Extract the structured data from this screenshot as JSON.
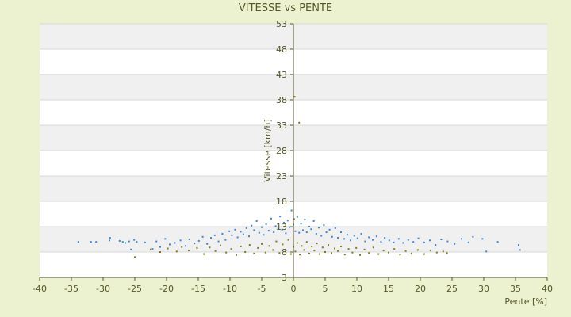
{
  "chart_data": {
    "type": "scatter",
    "title": "VITESSE vs PENTE",
    "xlabel": "Pente [%]",
    "ylabel": "Vitesse [km/h]",
    "xlim": [
      -40,
      40
    ],
    "ylim": [
      3,
      53
    ],
    "xticks": [
      -40,
      -35,
      -30,
      -25,
      -20,
      -15,
      -10,
      -5,
      0,
      5,
      10,
      15,
      20,
      25,
      30,
      35,
      40
    ],
    "yticks": [
      3,
      8,
      13,
      18,
      23,
      28,
      33,
      38,
      43,
      48,
      53
    ],
    "grid": "horizontal bands",
    "legend": "none",
    "colors": {
      "background": "#ecf2cf",
      "plot_band_light": "#ffffff",
      "plot_band_dark": "#f0f0f0",
      "gridline": "#d8d8d8",
      "axis": "#555528",
      "text": "#555528",
      "series_blue": "#3a86d4",
      "series_olive": "#7f7f10"
    },
    "series": [
      {
        "color": "#3a86d4",
        "points": [
          [
            -33.9,
            10.0
          ],
          [
            -31.9,
            10.0
          ],
          [
            -31.1,
            10.0
          ],
          [
            -29.0,
            10.3
          ],
          [
            -28.9,
            10.8
          ],
          [
            -27.4,
            10.2
          ],
          [
            -26.9,
            10.0
          ],
          [
            -26.5,
            9.8
          ],
          [
            -25.9,
            10.1
          ],
          [
            -25.6,
            8.5
          ],
          [
            -25.1,
            10.4
          ],
          [
            -24.7,
            10.0
          ],
          [
            -23.4,
            9.9
          ],
          [
            -22.2,
            8.6
          ],
          [
            -21.6,
            10.1
          ],
          [
            -21.0,
            9.0
          ],
          [
            -20.2,
            10.6
          ],
          [
            -19.5,
            9.5
          ],
          [
            -18.7,
            9.8
          ],
          [
            -17.8,
            10.3
          ],
          [
            -17.0,
            9.2
          ],
          [
            -16.4,
            10.5
          ],
          [
            -15.6,
            9.7
          ],
          [
            -14.9,
            10.2
          ],
          [
            -14.3,
            11.0
          ],
          [
            -13.6,
            9.6
          ],
          [
            -13.0,
            10.8
          ],
          [
            -12.4,
            11.3
          ],
          [
            -11.8,
            10.1
          ],
          [
            -11.2,
            11.6
          ],
          [
            -10.7,
            10.4
          ],
          [
            -10.1,
            12.1
          ],
          [
            -9.7,
            11.3
          ],
          [
            -9.2,
            12.4
          ],
          [
            -8.8,
            10.9
          ],
          [
            -8.3,
            12.0
          ],
          [
            -7.9,
            11.5
          ],
          [
            -7.4,
            12.7
          ],
          [
            -7.0,
            11.1
          ],
          [
            -6.6,
            13.2
          ],
          [
            -6.2,
            12.3
          ],
          [
            -5.8,
            14.1
          ],
          [
            -5.4,
            11.8
          ],
          [
            -5.0,
            12.9
          ],
          [
            -4.7,
            11.4
          ],
          [
            -4.3,
            13.5
          ],
          [
            -3.9,
            12.2
          ],
          [
            -3.5,
            14.6
          ],
          [
            -3.1,
            11.9
          ],
          [
            -2.8,
            13.1
          ],
          [
            -2.4,
            12.6
          ],
          [
            -2.1,
            15.0
          ],
          [
            -1.8,
            12.4
          ],
          [
            -1.5,
            13.8
          ],
          [
            -1.2,
            11.7
          ],
          [
            -0.9,
            14.2
          ],
          [
            -0.6,
            12.9
          ],
          [
            -0.3,
            16.2
          ],
          [
            0.0,
            13.4
          ],
          [
            0.3,
            12.1
          ],
          [
            0.6,
            14.9
          ],
          [
            0.9,
            11.8
          ],
          [
            1.2,
            13.6
          ],
          [
            1.5,
            12.3
          ],
          [
            1.8,
            14.4
          ],
          [
            2.1,
            11.9
          ],
          [
            2.5,
            13.0
          ],
          [
            2.8,
            12.5
          ],
          [
            3.2,
            14.1
          ],
          [
            3.6,
            11.6
          ],
          [
            4.0,
            12.8
          ],
          [
            4.4,
            11.2
          ],
          [
            4.8,
            13.3
          ],
          [
            5.2,
            11.9
          ],
          [
            5.7,
            12.4
          ],
          [
            6.1,
            11.0
          ],
          [
            6.6,
            12.7
          ],
          [
            7.0,
            10.8
          ],
          [
            7.5,
            11.9
          ],
          [
            8.0,
            10.6
          ],
          [
            8.5,
            11.4
          ],
          [
            9.0,
            10.3
          ],
          [
            9.6,
            11.2
          ],
          [
            10.1,
            10.7
          ],
          [
            10.7,
            11.6
          ],
          [
            11.3,
            10.1
          ],
          [
            11.9,
            10.9
          ],
          [
            12.5,
            10.4
          ],
          [
            13.1,
            11.1
          ],
          [
            13.8,
            10.0
          ],
          [
            14.4,
            10.8
          ],
          [
            15.1,
            10.3
          ],
          [
            15.8,
            9.9
          ],
          [
            16.6,
            10.6
          ],
          [
            17.3,
            9.8
          ],
          [
            18.1,
            10.4
          ],
          [
            18.9,
            10.0
          ],
          [
            19.7,
            10.7
          ],
          [
            20.6,
            9.9
          ],
          [
            21.5,
            10.3
          ],
          [
            22.4,
            9.4
          ],
          [
            23.3,
            10.5
          ],
          [
            24.3,
            10.1
          ],
          [
            25.4,
            9.6
          ],
          [
            26.5,
            10.6
          ],
          [
            27.6,
            9.9
          ],
          [
            28.3,
            11.0
          ],
          [
            29.8,
            10.6
          ],
          [
            30.4,
            8.1
          ],
          [
            32.2,
            10.0
          ],
          [
            35.5,
            9.4
          ],
          [
            35.7,
            8.4
          ]
        ]
      },
      {
        "color": "#7f7f10",
        "points": [
          [
            -25.0,
            7.0
          ],
          [
            -22.5,
            8.5
          ],
          [
            -21.0,
            8.0
          ],
          [
            -19.8,
            8.7
          ],
          [
            -18.4,
            8.1
          ],
          [
            -17.6,
            9.0
          ],
          [
            -16.5,
            8.3
          ],
          [
            -15.2,
            8.8
          ],
          [
            -14.1,
            7.6
          ],
          [
            -13.2,
            8.9
          ],
          [
            -12.3,
            8.2
          ],
          [
            -11.5,
            9.3
          ],
          [
            -10.6,
            7.9
          ],
          [
            -9.8,
            8.6
          ],
          [
            -9.0,
            7.4
          ],
          [
            -8.3,
            9.1
          ],
          [
            -7.6,
            8.0
          ],
          [
            -6.9,
            9.4
          ],
          [
            -6.2,
            7.7
          ],
          [
            -5.6,
            8.8
          ],
          [
            -5.0,
            9.6
          ],
          [
            -4.4,
            7.9
          ],
          [
            -3.8,
            9.2
          ],
          [
            -3.2,
            8.4
          ],
          [
            -2.7,
            10.1
          ],
          [
            -2.2,
            7.8
          ],
          [
            -1.7,
            9.5
          ],
          [
            -1.2,
            8.3
          ],
          [
            -0.8,
            10.4
          ],
          [
            -0.4,
            7.6
          ],
          [
            0.0,
            9.0
          ],
          [
            0.1,
            14.5
          ],
          [
            0.3,
            8.1
          ],
          [
            0.6,
            9.8
          ],
          [
            1.0,
            7.5
          ],
          [
            1.3,
            9.2
          ],
          [
            1.7,
            8.4
          ],
          [
            2.1,
            10.0
          ],
          [
            2.5,
            7.7
          ],
          [
            2.9,
            9.1
          ],
          [
            3.3,
            8.3
          ],
          [
            3.7,
            9.7
          ],
          [
            4.1,
            7.6
          ],
          [
            4.6,
            8.9
          ],
          [
            5.0,
            8.0
          ],
          [
            5.5,
            9.4
          ],
          [
            6.0,
            7.8
          ],
          [
            6.5,
            8.7
          ],
          [
            7.0,
            8.2
          ],
          [
            7.5,
            9.1
          ],
          [
            8.1,
            7.5
          ],
          [
            8.7,
            8.6
          ],
          [
            9.3,
            7.9
          ],
          [
            9.9,
            8.8
          ],
          [
            10.5,
            7.4
          ],
          [
            11.2,
            8.5
          ],
          [
            11.9,
            7.8
          ],
          [
            12.6,
            8.9
          ],
          [
            13.4,
            7.6
          ],
          [
            14.2,
            8.3
          ],
          [
            15.0,
            7.9
          ],
          [
            15.9,
            8.6
          ],
          [
            16.8,
            7.5
          ],
          [
            17.7,
            8.2
          ],
          [
            18.6,
            7.7
          ],
          [
            19.6,
            8.4
          ],
          [
            20.6,
            7.6
          ],
          [
            21.6,
            8.3
          ],
          [
            22.6,
            7.9
          ],
          [
            23.6,
            8.1
          ],
          [
            24.2,
            7.8
          ],
          [
            0.2,
            38.6
          ],
          [
            0.9,
            33.5
          ]
        ]
      }
    ]
  }
}
